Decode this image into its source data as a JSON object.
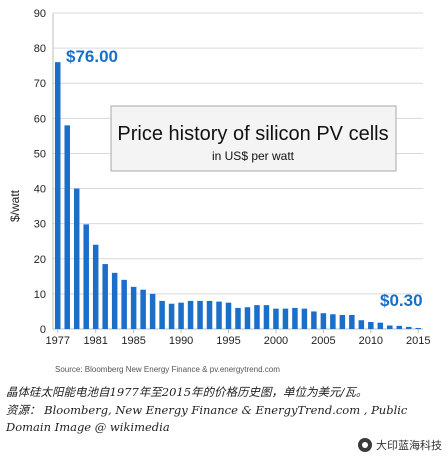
{
  "chart_data": {
    "type": "bar",
    "title": "Price history of silicon PV cells",
    "subtitle": "in US$ per watt",
    "ylabel": "$/watt",
    "xlabel": "",
    "ylim": [
      0,
      90
    ],
    "yticks": [
      0,
      10,
      20,
      30,
      40,
      50,
      60,
      70,
      80,
      90
    ],
    "xticks": [
      1977,
      1981,
      1985,
      1990,
      1995,
      2000,
      2005,
      2010,
      2015
    ],
    "grid": true,
    "x": [
      1977,
      1978,
      1979,
      1980,
      1981,
      1982,
      1983,
      1984,
      1985,
      1986,
      1987,
      1988,
      1989,
      1990,
      1991,
      1992,
      1993,
      1994,
      1995,
      1996,
      1997,
      1998,
      1999,
      2000,
      2001,
      2002,
      2003,
      2004,
      2005,
      2006,
      2007,
      2008,
      2009,
      2010,
      2011,
      2012,
      2013,
      2014,
      2015
    ],
    "values": [
      76.0,
      58.0,
      40.0,
      29.8,
      24.0,
      18.5,
      16.0,
      14.0,
      12.0,
      11.2,
      10.0,
      8.0,
      7.2,
      7.5,
      8.0,
      8.0,
      8.0,
      7.8,
      7.5,
      6.0,
      6.2,
      6.8,
      6.8,
      5.8,
      5.8,
      6.0,
      5.8,
      5.0,
      4.5,
      4.2,
      4.0,
      4.0,
      2.5,
      2.0,
      1.8,
      1.0,
      0.9,
      0.6,
      0.3
    ],
    "color": "#1c6fc8",
    "annotations": [
      {
        "text": "$76.00",
        "year": 1977
      },
      {
        "text": "$0.30",
        "year": 2015
      }
    ]
  },
  "source_note": "Source: Bloomberg New Energy Finance & pv.energytrend.com",
  "caption": {
    "line1": "晶体硅太阳能电池自1977年至2015年的价格历史图，单位为美元/瓦。",
    "line2": "资源： Bloomberg, New Energy Finance & EnergyTrend.com , Public",
    "line3": "Domain Image @ wikimedia"
  },
  "watermark": {
    "text": "大印蓝海科技"
  },
  "colors": {
    "bar": "#1c6fc8",
    "annotation": "#1a6fc9",
    "grid": "#d9d9d9"
  }
}
